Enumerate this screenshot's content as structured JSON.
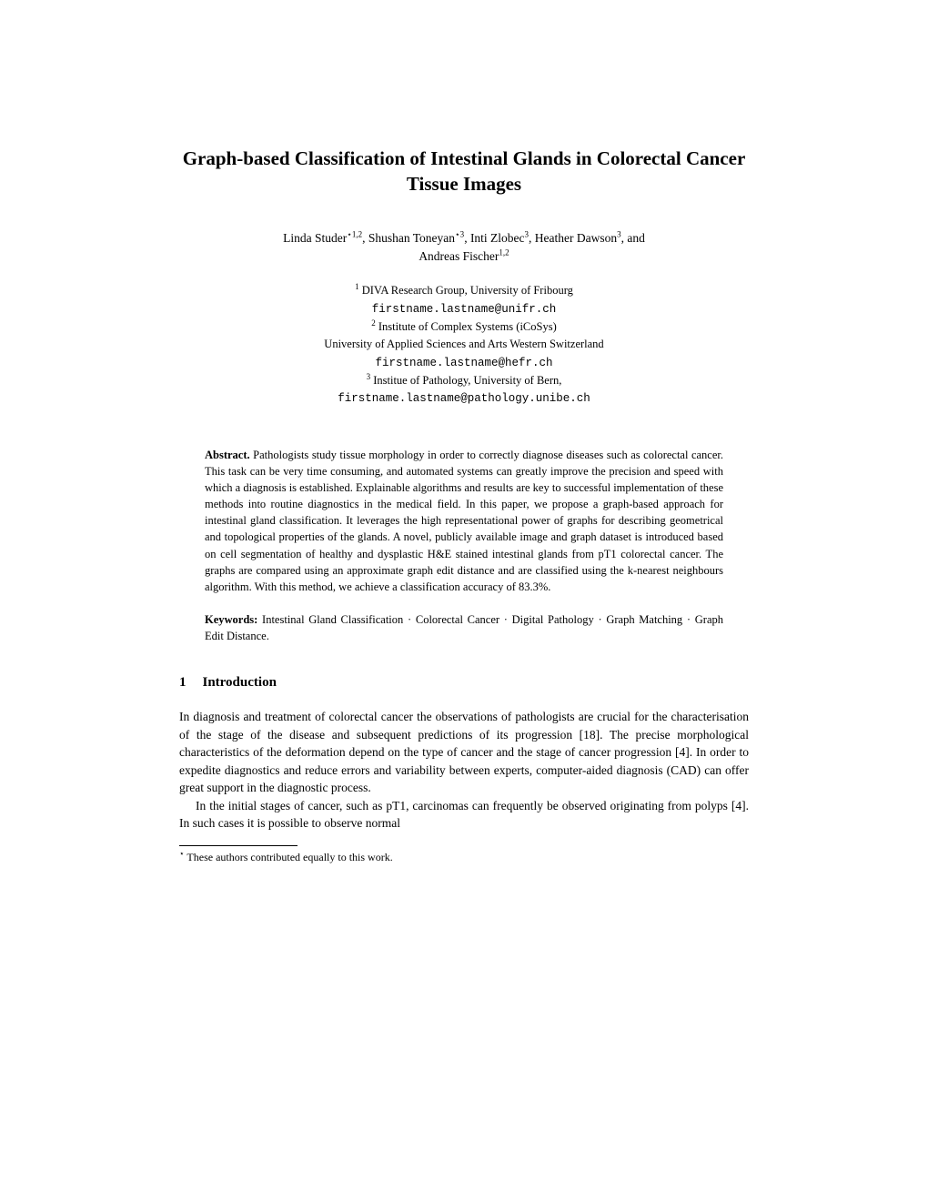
{
  "title": "Graph-based Classification of Intestinal Glands in Colorectal Cancer Tissue Images",
  "authors_line1": "Linda Studer",
  "authors_aff1": "⋆1,2",
  "authors_name2": ", Shushan Toneyan",
  "authors_aff2": "⋆3",
  "authors_name3": ", Inti Zlobec",
  "authors_aff3": "3",
  "authors_name4": ", Heather Dawson",
  "authors_aff4": "3",
  "authors_and": ", and",
  "authors_name5": "Andreas Fischer",
  "authors_aff5": "1,2",
  "aff1_sup": "1",
  "aff1_text": " DIVA Research Group, University of Fribourg",
  "aff1_email": "firstname.lastname@unifr.ch",
  "aff2_sup": "2",
  "aff2_text": " Institute of Complex Systems (iCoSys)",
  "aff2_text2": "University of Applied Sciences and Arts Western Switzerland",
  "aff2_email": "firstname.lastname@hefr.ch",
  "aff3_sup": "3",
  "aff3_text": " Institue of Pathology, University of Bern,",
  "aff3_email": "firstname.lastname@pathology.unibe.ch",
  "abstract_label": "Abstract. ",
  "abstract_text": "Pathologists study tissue morphology in order to correctly diagnose diseases such as colorectal cancer. This task can be very time consuming, and automated systems can greatly improve the precision and speed with which a diagnosis is established. Explainable algorithms and results are key to successful implementation of these methods into routine diagnostics in the medical field. In this paper, we propose a graph-based approach for intestinal gland classification. It leverages the high representational power of graphs for describing geometrical and topological properties of the glands. A novel, publicly available image and graph dataset is introduced based on cell segmentation of healthy and dysplastic H&E stained intestinal glands from pT1 colorectal cancer. The graphs are compared using an approximate graph edit distance and are classified using the k-nearest neighbours algorithm. With this method, we achieve a classification accuracy of 83.3%.",
  "keywords_label": "Keywords: ",
  "keywords_text": "Intestinal Gland Classification · Colorectal Cancer · Digital Pathology · Graph Matching · Graph Edit Distance.",
  "section1_number": "1",
  "section1_title": "Introduction",
  "intro_p1": "In diagnosis and treatment of colorectal cancer the observations of pathologists are crucial for the characterisation of the stage of the disease and subsequent predictions of its progression [18]. The precise morphological characteristics of the deformation depend on the type of cancer and the stage of cancer progression [4]. In order to expedite diagnostics and reduce errors and variability between experts, computer-aided diagnosis (CAD) can offer great support in the diagnostic process.",
  "intro_p2": "In the initial stages of cancer, such as pT1, carcinomas can frequently be observed originating from polyps [4]. In such cases it is possible to observe normal",
  "footnote_star": "⋆",
  "footnote_text": " These authors contributed equally to this work."
}
